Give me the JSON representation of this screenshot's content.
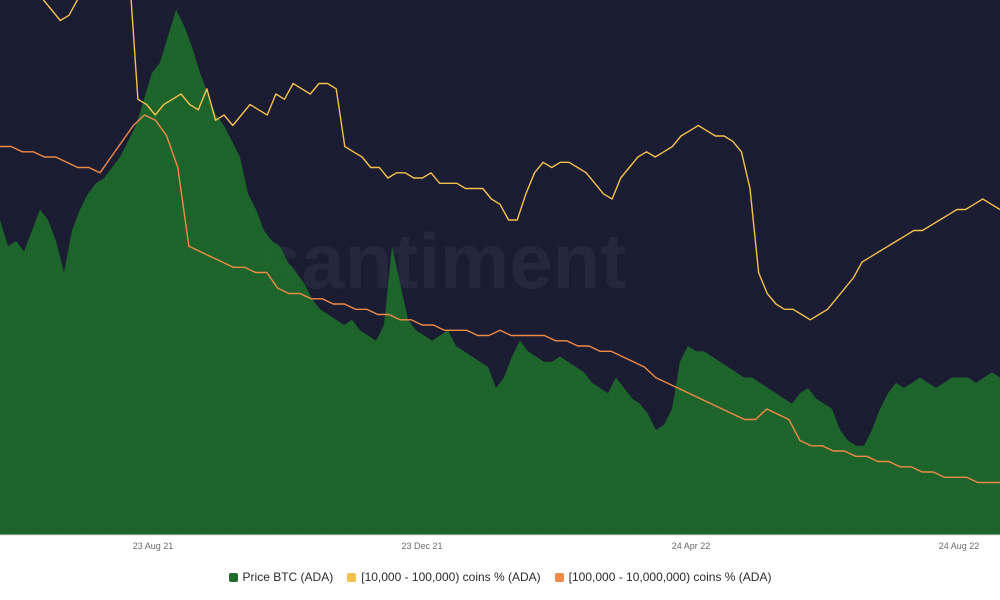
{
  "chart_data": {
    "type": "area",
    "watermark": "santiment",
    "x_ticks": [
      "23 Aug 21",
      "23 Dec 21",
      "24 Apr 22",
      "24 Aug 22"
    ],
    "background_color": "#1b1d33",
    "grid": false,
    "legend_position": "bottom-center",
    "series": [
      {
        "name": "Price BTC (ADA)",
        "type": "area",
        "color": "#1f6b2b",
        "values": [
          0.6,
          0.55,
          0.56,
          0.54,
          0.58,
          0.62,
          0.6,
          0.56,
          0.5,
          0.58,
          0.62,
          0.65,
          0.67,
          0.68,
          0.7,
          0.72,
          0.75,
          0.78,
          0.83,
          0.88,
          0.9,
          0.95,
          1.0,
          0.97,
          0.93,
          0.88,
          0.84,
          0.8,
          0.78,
          0.75,
          0.72,
          0.65,
          0.62,
          0.58,
          0.56,
          0.55,
          0.52,
          0.5,
          0.48,
          0.45,
          0.43,
          0.42,
          0.41,
          0.4,
          0.41,
          0.39,
          0.38,
          0.37,
          0.4,
          0.55,
          0.48,
          0.41,
          0.39,
          0.38,
          0.37,
          0.38,
          0.39,
          0.36,
          0.35,
          0.34,
          0.33,
          0.32,
          0.28,
          0.3,
          0.34,
          0.37,
          0.35,
          0.34,
          0.33,
          0.33,
          0.34,
          0.33,
          0.32,
          0.31,
          0.29,
          0.28,
          0.27,
          0.3,
          0.28,
          0.26,
          0.25,
          0.23,
          0.2,
          0.21,
          0.24,
          0.33,
          0.36,
          0.35,
          0.35,
          0.34,
          0.33,
          0.32,
          0.31,
          0.3,
          0.3,
          0.29,
          0.28,
          0.27,
          0.26,
          0.25,
          0.27,
          0.28,
          0.26,
          0.25,
          0.24,
          0.2,
          0.18,
          0.17,
          0.17,
          0.2,
          0.24,
          0.27,
          0.29,
          0.28,
          0.29,
          0.3,
          0.29,
          0.28,
          0.29,
          0.3,
          0.3,
          0.3,
          0.29,
          0.3,
          0.31,
          0.3
        ]
      },
      {
        "name": "[10,000 - 100,000) coins % (ADA)",
        "type": "line",
        "color": "#f3c04b",
        "values": [
          1.12,
          1.1,
          1.08,
          1.05,
          1.04,
          1.02,
          1.0,
          0.98,
          0.99,
          1.02,
          1.05,
          1.07,
          1.06,
          1.07,
          1.08,
          1.07,
          0.83,
          0.82,
          0.8,
          0.82,
          0.83,
          0.84,
          0.82,
          0.81,
          0.85,
          0.79,
          0.8,
          0.78,
          0.8,
          0.82,
          0.81,
          0.8,
          0.84,
          0.83,
          0.86,
          0.85,
          0.84,
          0.86,
          0.86,
          0.85,
          0.74,
          0.73,
          0.72,
          0.7,
          0.7,
          0.68,
          0.69,
          0.69,
          0.68,
          0.68,
          0.69,
          0.67,
          0.67,
          0.67,
          0.66,
          0.66,
          0.66,
          0.64,
          0.63,
          0.6,
          0.6,
          0.65,
          0.69,
          0.71,
          0.7,
          0.71,
          0.71,
          0.7,
          0.69,
          0.67,
          0.65,
          0.64,
          0.68,
          0.7,
          0.72,
          0.73,
          0.72,
          0.73,
          0.74,
          0.76,
          0.77,
          0.78,
          0.77,
          0.76,
          0.76,
          0.75,
          0.73,
          0.66,
          0.5,
          0.46,
          0.44,
          0.43,
          0.43,
          0.42,
          0.41,
          0.42,
          0.43,
          0.45,
          0.47,
          0.49,
          0.52,
          0.53,
          0.54,
          0.55,
          0.56,
          0.57,
          0.58,
          0.58,
          0.59,
          0.6,
          0.61,
          0.62,
          0.62,
          0.63,
          0.64,
          0.63,
          0.62
        ]
      },
      {
        "name": "[100,000  - 10,000,000) coins % (ADA)",
        "type": "line",
        "color": "#f08a47",
        "values": [
          0.74,
          0.74,
          0.73,
          0.73,
          0.72,
          0.72,
          0.71,
          0.7,
          0.7,
          0.69,
          0.72,
          0.75,
          0.78,
          0.8,
          0.79,
          0.76,
          0.7,
          0.55,
          0.54,
          0.53,
          0.52,
          0.51,
          0.51,
          0.5,
          0.5,
          0.47,
          0.46,
          0.46,
          0.45,
          0.45,
          0.44,
          0.44,
          0.43,
          0.43,
          0.42,
          0.42,
          0.41,
          0.41,
          0.4,
          0.4,
          0.39,
          0.39,
          0.39,
          0.38,
          0.38,
          0.39,
          0.38,
          0.38,
          0.38,
          0.38,
          0.37,
          0.37,
          0.36,
          0.36,
          0.35,
          0.35,
          0.34,
          0.33,
          0.32,
          0.3,
          0.29,
          0.28,
          0.27,
          0.26,
          0.25,
          0.24,
          0.23,
          0.22,
          0.22,
          0.24,
          0.23,
          0.22,
          0.18,
          0.17,
          0.17,
          0.16,
          0.16,
          0.15,
          0.15,
          0.14,
          0.14,
          0.13,
          0.13,
          0.12,
          0.12,
          0.11,
          0.11,
          0.11,
          0.1,
          0.1,
          0.1
        ]
      }
    ]
  }
}
